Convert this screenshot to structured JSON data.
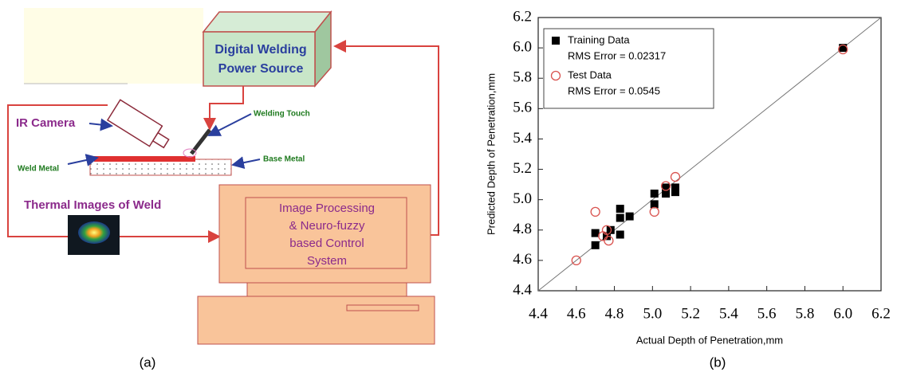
{
  "diagram": {
    "power_source": [
      "Digital Welding",
      "Power Source"
    ],
    "ir_camera": "IR Camera",
    "welding_touch": "Welding Touch",
    "weld_metal": "Weld Metal",
    "base_metal": "Base Metal",
    "thermal_images": "Thermal Images of Weld",
    "control_system": [
      "Image Processing",
      "& Neuro-fuzzy",
      "based Control",
      "System"
    ],
    "caption": "(a)"
  },
  "chart_data": {
    "type": "scatter",
    "caption": "(b)",
    "xlabel": "Actual Depth of Penetration,mm",
    "ylabel": "Predicted Depth of Penetration,mm",
    "xlim": [
      4.4,
      6.2
    ],
    "ylim": [
      4.4,
      6.2
    ],
    "xticks": [
      4.4,
      4.6,
      4.8,
      {
        "value": 5.0,
        "label": "5.0"
      },
      5.2,
      5.4,
      5.6,
      5.8,
      {
        "value": 6.0,
        "label": "6.0"
      },
      6.2
    ],
    "yticks": [
      4.4,
      4.6,
      4.8,
      {
        "value": 5.0,
        "label": "5.0"
      },
      5.2,
      5.4,
      5.6,
      5.8,
      {
        "value": 6.0,
        "label": "6.0"
      },
      6.2
    ],
    "diagonal": true,
    "legend": "upper left",
    "annotations": [
      "RMS Error = 0.02317",
      "RMS Error = 0.0545"
    ],
    "series": [
      {
        "name": "Training Data",
        "color": "#000000",
        "marker": "square",
        "x": [
          4.7,
          4.7,
          4.76,
          4.78,
          4.83,
          4.83,
          4.83,
          4.88,
          5.01,
          5.01,
          5.07,
          5.07,
          5.12,
          5.12,
          6.0
        ],
        "y": [
          4.7,
          4.78,
          4.76,
          4.8,
          4.77,
          4.88,
          4.94,
          4.89,
          4.97,
          5.04,
          5.04,
          5.08,
          5.05,
          5.08,
          6.0
        ]
      },
      {
        "name": "Test Data",
        "color": "#d9534f",
        "marker": "circle",
        "x": [
          4.6,
          4.7,
          4.74,
          4.76,
          4.77,
          5.01,
          5.07,
          5.12,
          6.0
        ],
        "y": [
          4.6,
          4.92,
          4.76,
          4.8,
          4.73,
          4.92,
          5.09,
          5.15,
          5.99
        ]
      }
    ]
  }
}
